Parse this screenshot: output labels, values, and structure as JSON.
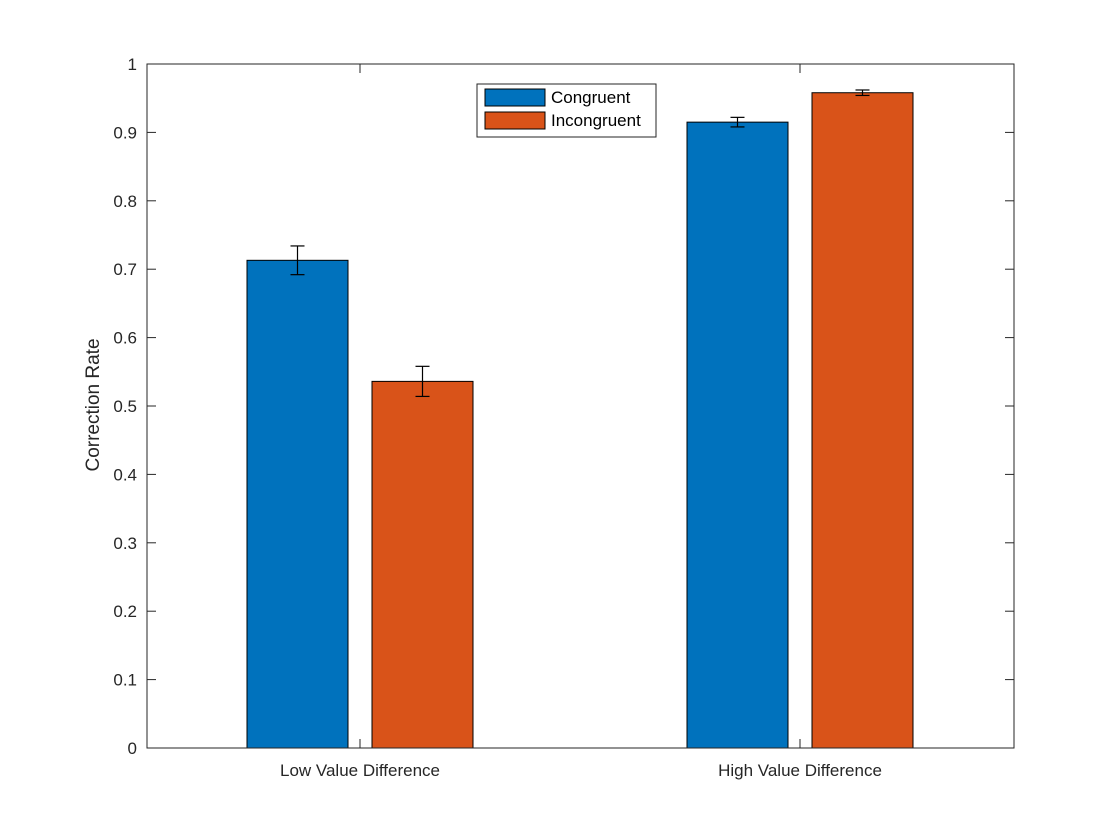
{
  "chart_data": {
    "type": "bar",
    "categories": [
      "Low Value Difference",
      "High Value Difference"
    ],
    "series": [
      {
        "name": "Congruent",
        "color": "#0072BD",
        "values": [
          0.713,
          0.915
        ],
        "errors": [
          0.021,
          0.007
        ]
      },
      {
        "name": "Incongruent",
        "color": "#D95319",
        "values": [
          0.536,
          0.958
        ],
        "errors": [
          0.022,
          0.004
        ]
      }
    ],
    "title": "",
    "xlabel": "",
    "ylabel": "Correction Rate",
    "ylim": [
      0,
      1
    ],
    "yticks": [
      "0",
      "0.1",
      "0.2",
      "0.3",
      "0.4",
      "0.5",
      "0.6",
      "0.7",
      "0.8",
      "0.9",
      "1"
    ],
    "grid": false,
    "legend_position": "top-center"
  }
}
